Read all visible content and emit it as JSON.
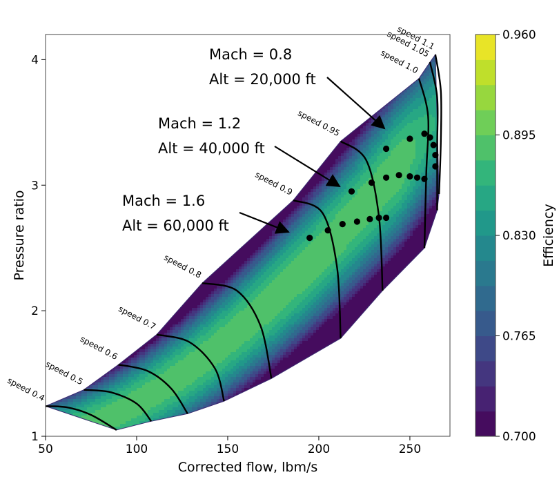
{
  "chart_data": {
    "type": "heatmap",
    "subtype": "compressor map with filled efficiency contours",
    "title": "",
    "xlabel": "Corrected flow, lbm/s",
    "ylabel": "Pressure ratio",
    "xlim": [
      50,
      272
    ],
    "ylim": [
      1,
      4.2
    ],
    "xticks": [
      50,
      100,
      150,
      200,
      250
    ],
    "yticks": [
      1,
      2,
      3,
      4
    ],
    "grid": false,
    "colorbar": {
      "label": "Efficiency",
      "colormap": "viridis",
      "min": 0.7,
      "max": 0.96,
      "levels": 16,
      "tick_values": [
        0.7,
        0.765,
        0.83,
        0.895,
        0.96
      ],
      "tick_labels": [
        "0.700",
        "0.765",
        "0.830",
        "0.895",
        "0.960"
      ]
    },
    "speed_lines": [
      {
        "label": "speed 0.4",
        "points": [
          [
            50,
            1.24
          ],
          [
            62,
            1.23
          ],
          [
            75,
            1.17
          ],
          [
            89,
            1.05
          ]
        ]
      },
      {
        "label": "speed 0.5",
        "points": [
          [
            71,
            1.37
          ],
          [
            86,
            1.35
          ],
          [
            100,
            1.26
          ],
          [
            108,
            1.12
          ]
        ]
      },
      {
        "label": "speed 0.6",
        "points": [
          [
            90,
            1.57
          ],
          [
            106,
            1.52
          ],
          [
            119,
            1.38
          ],
          [
            128,
            1.18
          ]
        ]
      },
      {
        "label": "speed 0.7",
        "points": [
          [
            111,
            1.81
          ],
          [
            129,
            1.75
          ],
          [
            143,
            1.54
          ],
          [
            148,
            1.28
          ]
        ]
      },
      {
        "label": "speed 0.8",
        "points": [
          [
            136,
            2.22
          ],
          [
            155,
            2.16
          ],
          [
            168,
            1.88
          ],
          [
            174,
            1.46
          ]
        ]
      },
      {
        "label": "speed 0.9",
        "points": [
          [
            186,
            2.88
          ],
          [
            202,
            2.78
          ],
          [
            210,
            2.35
          ],
          [
            212,
            1.78
          ]
        ]
      },
      {
        "label": "speed 0.95",
        "points": [
          [
            212,
            3.35
          ],
          [
            226,
            3.2
          ],
          [
            233,
            2.75
          ],
          [
            235,
            2.16
          ]
        ]
      },
      {
        "label": "speed 1.0",
        "points": [
          [
            255,
            3.85
          ],
          [
            260,
            3.55
          ],
          [
            259,
            3.1
          ],
          [
            258,
            2.5
          ]
        ]
      },
      {
        "label": "speed 1.05",
        "points": [
          [
            261,
            3.98
          ],
          [
            265,
            3.7
          ],
          [
            265,
            3.3
          ],
          [
            265,
            2.8
          ]
        ]
      },
      {
        "label": "speed 1.1",
        "points": [
          [
            264,
            4.04
          ],
          [
            267,
            3.75
          ],
          [
            267,
            3.35
          ],
          [
            266,
            2.93
          ]
        ]
      }
    ],
    "series": [
      {
        "name": "Mach = 0.8",
        "points": [
          [
            237,
            3.29
          ],
          [
            250,
            3.37
          ],
          [
            258,
            3.41
          ],
          [
            261,
            3.38
          ],
          [
            263,
            3.32
          ],
          [
            264,
            3.24
          ],
          [
            264,
            3.15
          ]
        ]
      },
      {
        "name": "Mach = 1.2",
        "points": [
          [
            218,
            2.95
          ],
          [
            229,
            3.02
          ],
          [
            237,
            3.06
          ],
          [
            244,
            3.08
          ],
          [
            250,
            3.07
          ],
          [
            254,
            3.06
          ],
          [
            258,
            3.05
          ]
        ]
      },
      {
        "name": "Mach = 1.6",
        "points": [
          [
            195,
            2.58
          ],
          [
            205,
            2.64
          ],
          [
            213,
            2.69
          ],
          [
            221,
            2.71
          ],
          [
            228,
            2.73
          ],
          [
            233,
            2.74
          ],
          [
            237,
            2.74
          ]
        ]
      }
    ],
    "annotations": [
      {
        "line1": "Mach = 0.8",
        "line2": "Alt = 20,000 ft"
      },
      {
        "line1": "Mach = 1.2",
        "line2": "Alt = 40,000 ft"
      },
      {
        "line1": "Mach = 1.6",
        "line2": "Alt = 60,000 ft"
      }
    ]
  }
}
